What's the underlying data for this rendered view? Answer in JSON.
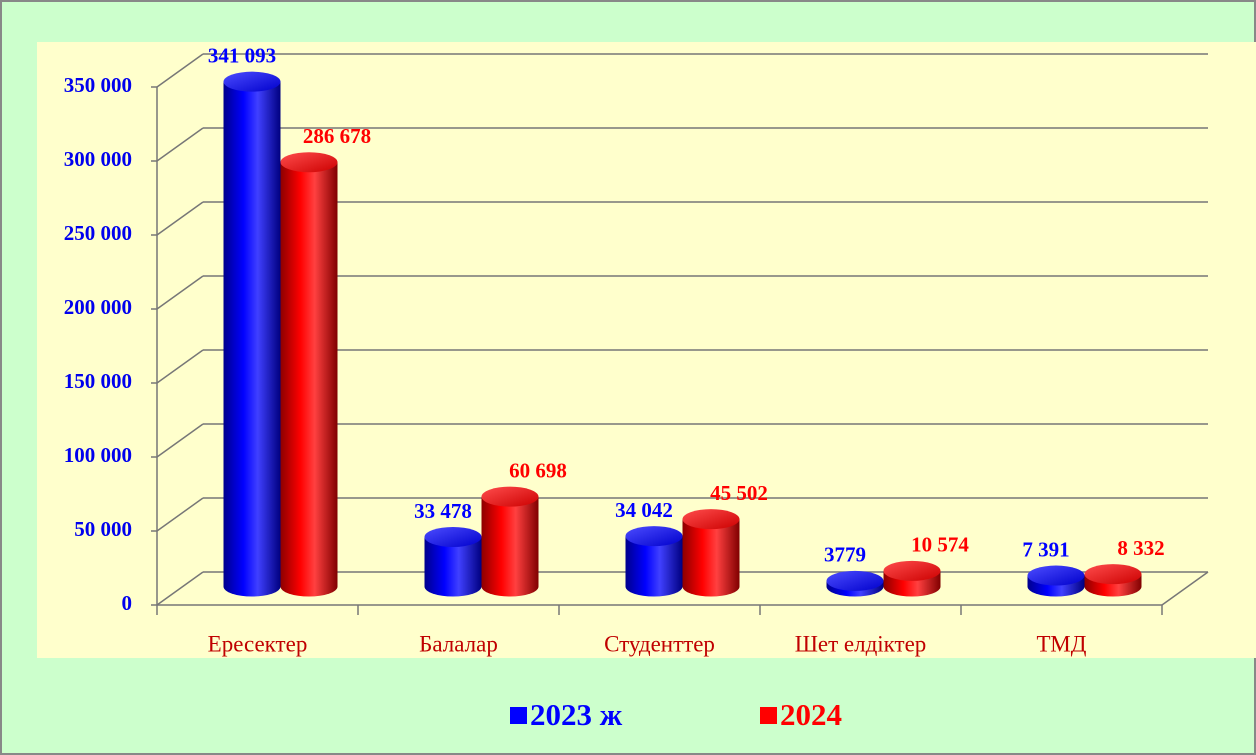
{
  "chart_data": {
    "type": "bar3d",
    "categories": [
      "Ересектер",
      "Балалар",
      "Студенттер",
      "Шет елдіктер",
      "ТМД"
    ],
    "series": [
      {
        "name": "2023 ж",
        "color": "#0000ff",
        "values": [
          341093,
          33478,
          34042,
          3779,
          7391
        ],
        "value_labels": [
          "341 093",
          "33 478",
          "34 042",
          "3779",
          "7 391"
        ]
      },
      {
        "name": "2024",
        "color": "#ff0000",
        "values": [
          286678,
          60698,
          45502,
          10574,
          8332
        ],
        "value_labels": [
          "286 678",
          "60 698",
          "45 502",
          "10 574",
          "8 332"
        ]
      }
    ],
    "ylim": [
      0,
      350000
    ],
    "yticks": [
      0,
      {
        "value": 50000,
        "label": "50 000"
      },
      {
        "value": 100000,
        "label": "100 000"
      },
      {
        "value": 150000,
        "label": "150 000"
      },
      {
        "value": 200000,
        "label": "200 000"
      },
      {
        "value": 250000,
        "label": "250 000"
      },
      {
        "value": 300000,
        "label": "300 000"
      },
      {
        "value": 350000,
        "label": "350 000"
      }
    ],
    "grid": true,
    "legend": "bottom"
  }
}
